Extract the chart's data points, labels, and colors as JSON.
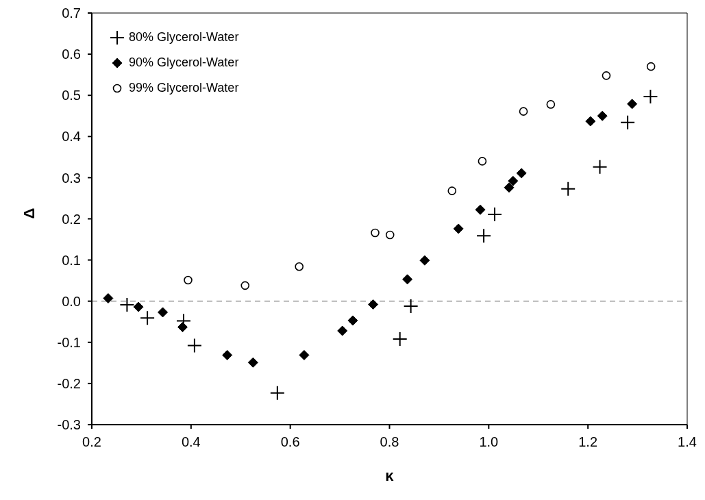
{
  "chart_data": {
    "type": "scatter",
    "xlabel": "κ",
    "ylabel": "Δ",
    "xlim": [
      0.2,
      1.4
    ],
    "xticks": [
      {
        "value": 0.2,
        "label": "0.2"
      },
      {
        "value": 0.4,
        "label": "0.4"
      },
      {
        "value": 0.6,
        "label": "0.6"
      },
      {
        "value": 0.8,
        "label": "0.8"
      },
      {
        "value": 1.0,
        "label": "1.0"
      },
      {
        "value": 1.2,
        "label": "1.2"
      },
      {
        "value": 1.4,
        "label": "1.4"
      }
    ],
    "ylim": [
      -0.3,
      0.7
    ],
    "yticks": [
      {
        "value": -0.3,
        "label": "-0.3"
      },
      {
        "value": -0.2,
        "label": "-0.2"
      },
      {
        "value": -0.1,
        "label": "-0.1"
      },
      {
        "value": 0.0,
        "label": "0.0"
      },
      {
        "value": 0.1,
        "label": "0.1"
      },
      {
        "value": 0.2,
        "label": "0.2"
      },
      {
        "value": 0.3,
        "label": "0.3"
      },
      {
        "value": 0.4,
        "label": "0.4"
      },
      {
        "value": 0.5,
        "label": "0.5"
      },
      {
        "value": 0.6,
        "label": "0.6"
      },
      {
        "value": 0.7,
        "label": "0.7"
      }
    ],
    "grid": false,
    "legend": "top left",
    "ref_lines": [
      {
        "axis": "y",
        "value": 0,
        "label": null,
        "color": "#555555",
        "line_style": "dashed"
      }
    ],
    "series": [
      {
        "name": "80% Glycerol-Water",
        "color": "#000000",
        "marker": "cross",
        "x": [
          0.271,
          0.312,
          0.385,
          0.407,
          0.574,
          0.821,
          0.843,
          0.99,
          1.012,
          1.16,
          1.224,
          1.28,
          1.326
        ],
        "values": [
          -0.009,
          -0.041,
          -0.048,
          -0.108,
          -0.223,
          -0.092,
          -0.012,
          0.159,
          0.211,
          0.273,
          0.326,
          0.434,
          0.497
        ]
      },
      {
        "name": "90% Glycerol-Water",
        "color": "#000000",
        "marker": "diamond",
        "x": [
          0.233,
          0.294,
          0.343,
          0.383,
          0.473,
          0.525,
          0.628,
          0.705,
          0.726,
          0.767,
          0.836,
          0.871,
          0.939,
          0.983,
          1.041,
          1.049,
          1.066,
          1.205,
          1.229,
          1.289
        ],
        "values": [
          0.007,
          -0.014,
          -0.027,
          -0.063,
          -0.131,
          -0.149,
          -0.131,
          -0.072,
          -0.047,
          -0.008,
          0.053,
          0.099,
          0.176,
          0.222,
          0.276,
          0.292,
          0.311,
          0.437,
          0.45,
          0.479
        ]
      },
      {
        "name": "99% Glycerol-Water",
        "color": "#000000",
        "marker": "circle",
        "x": [
          0.394,
          0.509,
          0.618,
          0.771,
          0.801,
          0.926,
          0.987,
          1.07,
          1.125,
          1.237,
          1.327
        ],
        "values": [
          0.051,
          0.038,
          0.084,
          0.166,
          0.161,
          0.268,
          0.34,
          0.461,
          0.478,
          0.548,
          0.57
        ]
      }
    ]
  }
}
